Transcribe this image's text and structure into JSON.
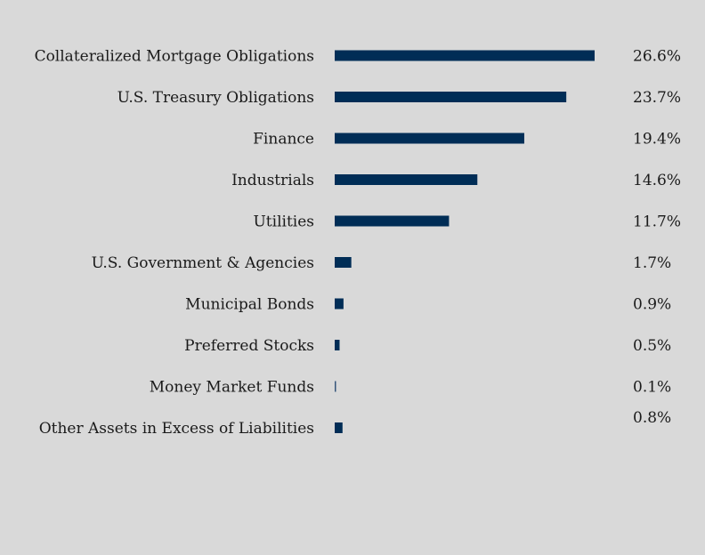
{
  "chart_data": {
    "type": "bar",
    "orientation": "horizontal",
    "categories": [
      "Collateralized Mortgage Obligations",
      "U.S. Treasury Obligations",
      "Finance",
      "Industrials",
      "Utilities",
      "U.S. Government & Agencies",
      "Municipal Bonds",
      "Preferred Stocks",
      "Money Market Funds",
      "Other Assets in Excess of Liabilities"
    ],
    "values": [
      26.6,
      23.7,
      19.4,
      14.6,
      11.7,
      1.7,
      0.9,
      0.5,
      0.1,
      0.8
    ],
    "value_labels": [
      "26.6%",
      "23.7%",
      "19.4%",
      "14.6%",
      "11.7%",
      "1.7%",
      "0.9%",
      "0.5%",
      "0.1%",
      "0.8%"
    ],
    "title": "",
    "xlabel": "",
    "ylabel": "",
    "xlim": [
      0,
      26.6
    ],
    "grid": false,
    "legend": "none",
    "bar_color": "#002d56",
    "background_color": "#d9d9d9",
    "text_color": "#1a1a1a"
  }
}
